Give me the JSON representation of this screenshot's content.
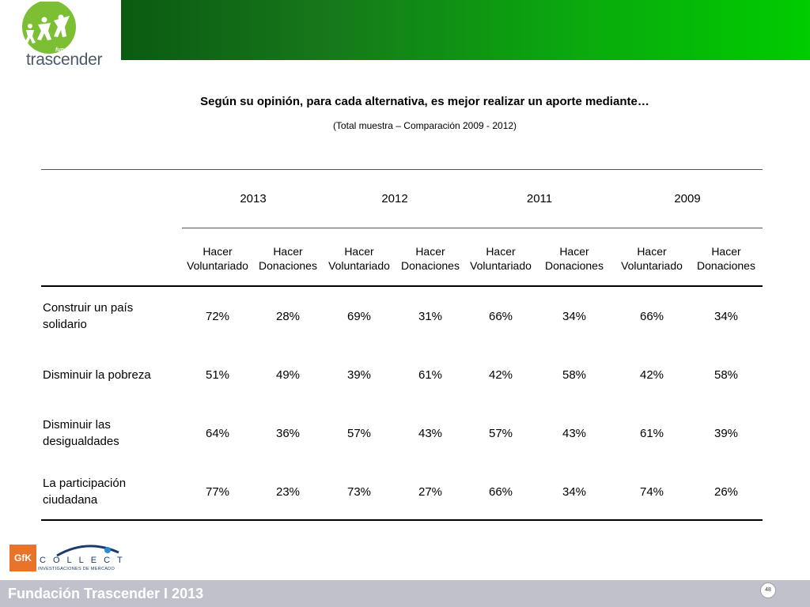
{
  "header": {
    "logo_small": "fundación",
    "logo_word": "trascender"
  },
  "title": "Según su opinión, para cada alternativa, es mejor realizar un aporte mediante…",
  "subtitle": "(Total muestra – Comparación 2009 - 2012)",
  "table": {
    "years": [
      "2013",
      "2012",
      "2011",
      "2009"
    ],
    "sub_headers": [
      [
        "Hacer",
        "Voluntariado"
      ],
      [
        "Hacer",
        "Donaciones"
      ],
      [
        "Hacer",
        "Voluntariado"
      ],
      [
        "Hacer",
        "Donaciones"
      ],
      [
        "Hacer",
        "Voluntariado"
      ],
      [
        "Hacer",
        "Donaciones"
      ],
      [
        "Hacer",
        "Voluntariado"
      ],
      [
        "Hacer",
        "Donaciones"
      ]
    ],
    "rows": [
      {
        "label": [
          "Construir un país",
          "solidario"
        ],
        "values": [
          "72%",
          "28%",
          "69%",
          "31%",
          "66%",
          "34%",
          "66%",
          "34%"
        ]
      },
      {
        "label": [
          "Disminuir la pobreza"
        ],
        "values": [
          "51%",
          "49%",
          "39%",
          "61%",
          "42%",
          "58%",
          "42%",
          "58%"
        ]
      },
      {
        "label": [
          "Disminuir las",
          "desigualdades"
        ],
        "values": [
          "64%",
          "36%",
          "57%",
          "43%",
          "57%",
          "43%",
          "61%",
          "39%"
        ]
      },
      {
        "label": [
          "La participación",
          "ciudadana"
        ],
        "values": [
          "77%",
          "23%",
          "73%",
          "27%",
          "66%",
          "34%",
          "74%",
          "26%"
        ]
      }
    ]
  },
  "footer": {
    "text": "Fundación Trascender I 2013",
    "page": "48",
    "gfk": "GfK",
    "collect": "COLLECT",
    "collect_sub": "INVESTIGACIONES DE MERCADO"
  },
  "colors": {
    "header_dark": "#0b5a12",
    "header_light": "#00cc00",
    "footer_bg": "#c0c1cb",
    "gfk_orange": "#e8732a"
  }
}
